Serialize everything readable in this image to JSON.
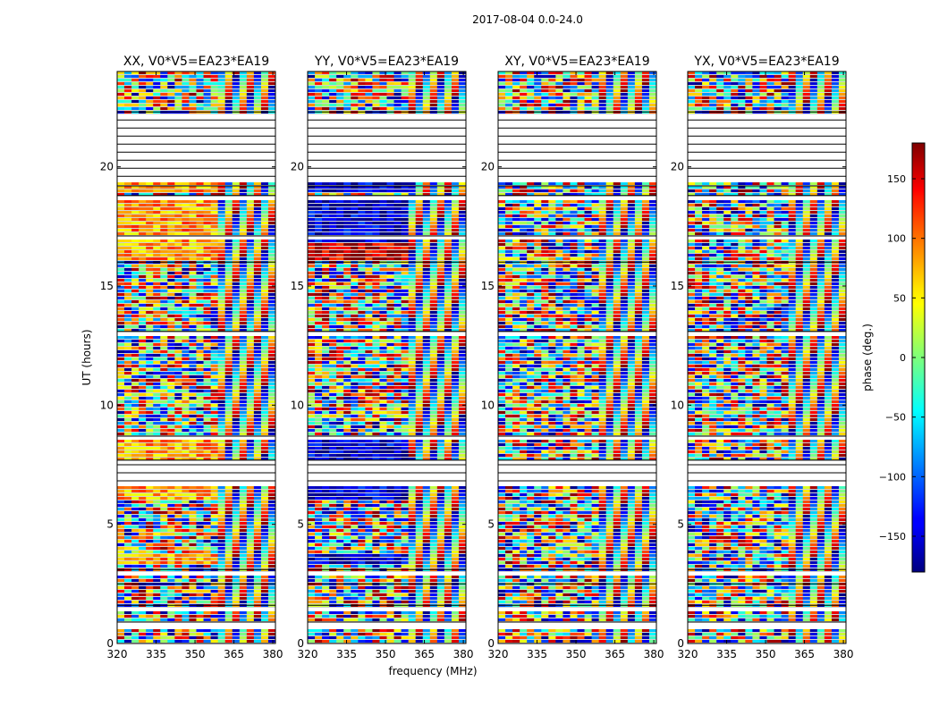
{
  "figure_title": "2017-08-04 0.0-24.0",
  "chart_data": {
    "type": "heatmap",
    "title": "2017-08-04 0.0-24.0",
    "xlabel": "frequency (MHz)",
    "ylabel": "UT (hours)",
    "xlim": [
      320,
      381
    ],
    "ylim": [
      0,
      24
    ],
    "xticks": [
      320,
      335,
      350,
      365,
      380
    ],
    "yticks": [
      0,
      5,
      10,
      15,
      20
    ],
    "colorbar": {
      "label": "phase (deg.)",
      "range": [
        -180,
        180
      ],
      "ticks": [
        -150,
        -100,
        -50,
        0,
        50,
        100,
        150
      ],
      "colormap": "jet"
    },
    "panels": [
      {
        "title": "XX, V0*V5=EA23*EA19"
      },
      {
        "title": "YY, V0*V5=EA23*EA19"
      },
      {
        "title": "XY, V0*V5=EA23*EA19"
      },
      {
        "title": "YX, V0*V5=EA23*EA19"
      }
    ],
    "gaps_ut": [
      [
        0.7,
        0.9
      ],
      [
        1.5,
        1.6
      ],
      [
        2.45,
        2.5
      ],
      [
        3.0,
        3.1
      ],
      [
        6.7,
        7.5
      ],
      [
        7.6,
        7.7
      ],
      [
        8.6,
        8.7
      ],
      [
        13.0,
        13.1
      ],
      [
        15.9,
        16.0
      ],
      [
        17.0,
        17.1
      ],
      [
        18.7,
        18.8
      ],
      [
        19.1,
        19.2
      ],
      [
        19.5,
        22.3
      ]
    ]
  }
}
